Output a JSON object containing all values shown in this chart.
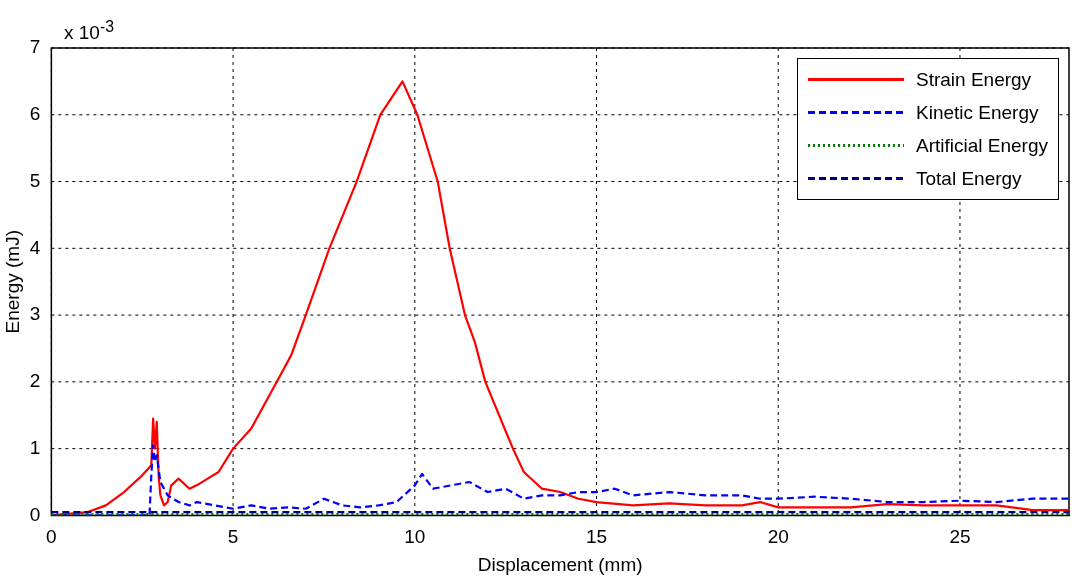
{
  "chart_data": {
    "type": "line",
    "xlabel": "Displacement (mm)",
    "ylabel": "Energy (mJ)",
    "annotations": [
      "x 10$^{-3}$"
    ],
    "xlim": [
      0,
      28
    ],
    "xticks": [
      0,
      5,
      10,
      15,
      20,
      25
    ],
    "ylim": [
      0,
      7
    ],
    "yticks": [
      0,
      1,
      2,
      3,
      4,
      5,
      6,
      7
    ],
    "grid": true,
    "legend": "top right",
    "marker": "none",
    "series": [
      {
        "name": "Strain Energy",
        "color": "#ff0000",
        "line_style": "solid",
        "x": [
          0,
          1,
          1.5,
          2,
          2.5,
          2.75,
          2.8,
          2.85,
          2.9,
          2.95,
          3,
          3.1,
          3.2,
          3.3,
          3.5,
          3.8,
          4,
          4.3,
          4.6,
          5,
          5.5,
          6,
          6.3,
          6.6,
          7,
          7.65,
          8.4,
          9.05,
          9.66,
          10.07,
          10.63,
          10.96,
          11.38,
          11.65,
          11.94,
          12.7,
          13,
          13.5,
          14,
          14.5,
          15,
          16,
          17,
          18,
          19,
          19.5,
          20,
          22,
          23,
          24,
          25,
          26,
          27,
          28
        ],
        "values": [
          0,
          0.05,
          0.15,
          0.35,
          0.6,
          0.75,
          1.45,
          1.0,
          1.4,
          0.6,
          0.3,
          0.15,
          0.2,
          0.45,
          0.55,
          0.4,
          0.45,
          0.55,
          0.65,
          1.0,
          1.3,
          1.8,
          2.1,
          2.4,
          3.0,
          4.0,
          5.0,
          6.0,
          6.5,
          6.0,
          5.0,
          4.0,
          3.0,
          2.6,
          2.0,
          1.0,
          0.65,
          0.4,
          0.35,
          0.25,
          0.2,
          0.15,
          0.18,
          0.15,
          0.15,
          0.2,
          0.12,
          0.12,
          0.17,
          0.15,
          0.15,
          0.15,
          0.08,
          0.08
        ]
      },
      {
        "name": "Kinetic Energy",
        "color": "#0000ff",
        "line_style": "dashed",
        "x": [
          0,
          2.7,
          2.75,
          2.8,
          2.85,
          2.9,
          3,
          3.2,
          3.5,
          3.8,
          4,
          4.5,
          5,
          5.5,
          6,
          6.5,
          7,
          7.5,
          8,
          8.5,
          9,
          9.5,
          10,
          10.2,
          10.5,
          11,
          11.5,
          12,
          12.5,
          13,
          13.5,
          14,
          14.5,
          15,
          15.5,
          16,
          17,
          18,
          19,
          19.5,
          20,
          21,
          22,
          23,
          24,
          25,
          26,
          27,
          28
        ],
        "values": [
          0,
          0,
          0.6,
          1.05,
          0.8,
          0.9,
          0.5,
          0.3,
          0.2,
          0.15,
          0.2,
          0.15,
          0.1,
          0.15,
          0.1,
          0.12,
          0.1,
          0.25,
          0.15,
          0.12,
          0.15,
          0.2,
          0.45,
          0.62,
          0.4,
          0.45,
          0.5,
          0.35,
          0.4,
          0.25,
          0.3,
          0.3,
          0.35,
          0.35,
          0.4,
          0.3,
          0.35,
          0.3,
          0.3,
          0.25,
          0.25,
          0.28,
          0.25,
          0.2,
          0.2,
          0.22,
          0.2,
          0.25,
          0.25
        ]
      },
      {
        "name": "Artificial Energy",
        "color": "#008000",
        "line_style": "dotted",
        "x": [
          0,
          28
        ],
        "values": [
          0.02,
          0.02
        ]
      },
      {
        "name": "Total Energy",
        "color": "#00007f",
        "line_style": "dashed",
        "x": [
          0,
          28
        ],
        "values": [
          0.05,
          0.05
        ]
      }
    ]
  }
}
